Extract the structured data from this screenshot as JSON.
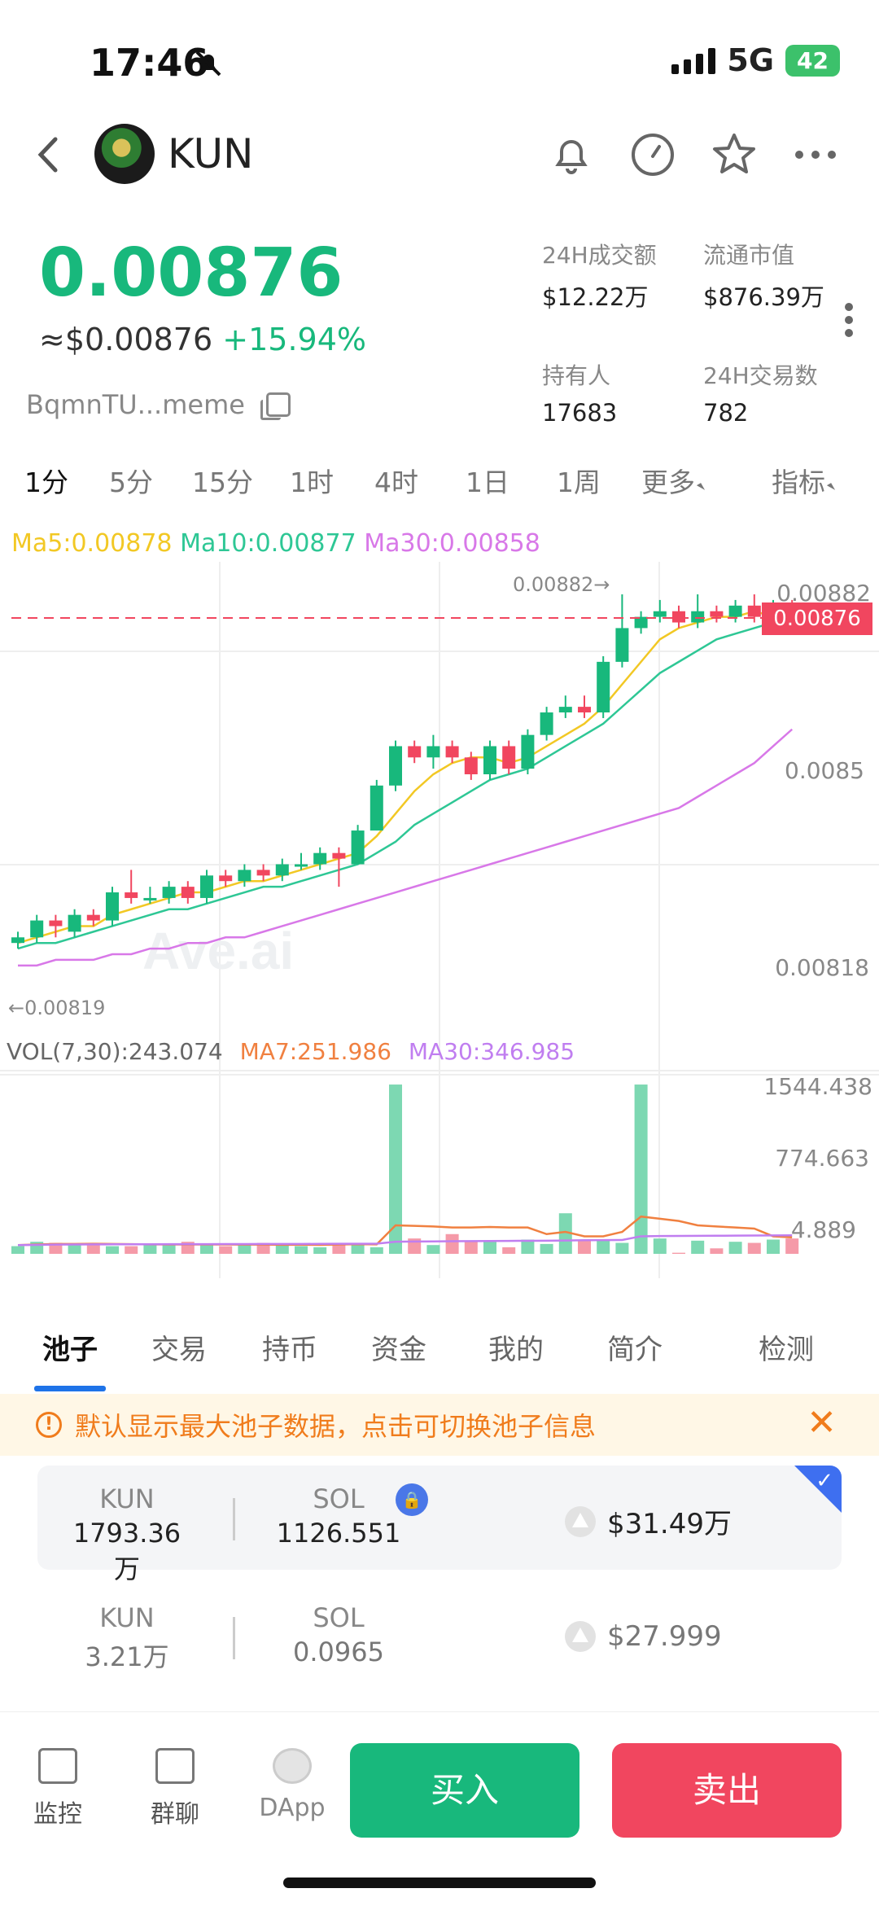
{
  "status": {
    "time": "17:46",
    "network": "5G",
    "battery": "42"
  },
  "header": {
    "token": "KUN"
  },
  "price": {
    "value": "0.00876",
    "usd": "≈$0.00876",
    "change": "+15.94%",
    "address": "BqmnTU...meme"
  },
  "stats": [
    {
      "label": "24H成交额",
      "value": "$12.22万"
    },
    {
      "label": "流通市值",
      "value": "$876.39万"
    },
    {
      "label": "持有人",
      "value": "17683"
    },
    {
      "label": "24H交易数",
      "value": "782"
    }
  ],
  "time_tabs": [
    "1分",
    "5分",
    "15分",
    "1时",
    "4时",
    "1日",
    "1周",
    "更多",
    "指标"
  ],
  "ma_legend": {
    "ma5": "Ma5:0.00878",
    "ma10": "Ma10:0.00877",
    "ma30": "Ma30:0.00858"
  },
  "vol_legend": {
    "vol": "VOL(7,30):243.074",
    "ma7": "MA7:251.986",
    "ma30": "MA30:346.985"
  },
  "colors": {
    "up": "#18b87c",
    "down": "#f1465f",
    "ma5": "#f2c824",
    "ma10": "#2ec795",
    "ma30": "#d878e8",
    "vol_ma7": "#f08040",
    "vol_ma30": "#c07ef0"
  },
  "chart_data": {
    "type": "candlestick",
    "price_axis_labels": [
      "0.00882",
      "0.0085",
      "0.00818"
    ],
    "current_price_label": "0.00876",
    "high_marker": "0.00882→",
    "low_marker": "←0.00819",
    "watermark": "Ave.ai",
    "volume_axis_labels": [
      "1544.438",
      "774.663",
      "4.889"
    ],
    "ylim": [
      0.00815,
      0.00885
    ],
    "candles": [
      {
        "o": 0.0082,
        "c": 0.00821,
        "h": 0.00822,
        "l": 0.00819
      },
      {
        "o": 0.00821,
        "c": 0.00824,
        "h": 0.00825,
        "l": 0.0082
      },
      {
        "o": 0.00824,
        "c": 0.00823,
        "h": 0.00825,
        "l": 0.00821
      },
      {
        "o": 0.00822,
        "c": 0.00825,
        "h": 0.00826,
        "l": 0.00821
      },
      {
        "o": 0.00825,
        "c": 0.00824,
        "h": 0.00826,
        "l": 0.00823
      },
      {
        "o": 0.00824,
        "c": 0.00829,
        "h": 0.0083,
        "l": 0.00823
      },
      {
        "o": 0.00829,
        "c": 0.00828,
        "h": 0.00833,
        "l": 0.00827
      },
      {
        "o": 0.00828,
        "c": 0.00828,
        "h": 0.0083,
        "l": 0.00827
      },
      {
        "o": 0.00828,
        "c": 0.0083,
        "h": 0.00831,
        "l": 0.00827
      },
      {
        "o": 0.0083,
        "c": 0.00828,
        "h": 0.00831,
        "l": 0.00827
      },
      {
        "o": 0.00828,
        "c": 0.00832,
        "h": 0.00833,
        "l": 0.00827
      },
      {
        "o": 0.00832,
        "c": 0.00831,
        "h": 0.00833,
        "l": 0.0083
      },
      {
        "o": 0.00831,
        "c": 0.00833,
        "h": 0.00834,
        "l": 0.0083
      },
      {
        "o": 0.00833,
        "c": 0.00832,
        "h": 0.00834,
        "l": 0.00831
      },
      {
        "o": 0.00832,
        "c": 0.00834,
        "h": 0.00835,
        "l": 0.00831
      },
      {
        "o": 0.00834,
        "c": 0.00834,
        "h": 0.00836,
        "l": 0.00833
      },
      {
        "o": 0.00834,
        "c": 0.00836,
        "h": 0.00837,
        "l": 0.00833
      },
      {
        "o": 0.00836,
        "c": 0.00835,
        "h": 0.00837,
        "l": 0.0083
      },
      {
        "o": 0.00834,
        "c": 0.0084,
        "h": 0.00841,
        "l": 0.00834
      },
      {
        "o": 0.0084,
        "c": 0.00848,
        "h": 0.00849,
        "l": 0.0084
      },
      {
        "o": 0.00848,
        "c": 0.00855,
        "h": 0.00856,
        "l": 0.00847
      },
      {
        "o": 0.00855,
        "c": 0.00853,
        "h": 0.00856,
        "l": 0.00852
      },
      {
        "o": 0.00853,
        "c": 0.00855,
        "h": 0.00857,
        "l": 0.00851
      },
      {
        "o": 0.00855,
        "c": 0.00853,
        "h": 0.00856,
        "l": 0.00852
      },
      {
        "o": 0.00853,
        "c": 0.0085,
        "h": 0.00854,
        "l": 0.00849
      },
      {
        "o": 0.0085,
        "c": 0.00855,
        "h": 0.00856,
        "l": 0.00849
      },
      {
        "o": 0.00855,
        "c": 0.00851,
        "h": 0.00856,
        "l": 0.0085
      },
      {
        "o": 0.00851,
        "c": 0.00857,
        "h": 0.00858,
        "l": 0.0085
      },
      {
        "o": 0.00857,
        "c": 0.00861,
        "h": 0.00862,
        "l": 0.00856
      },
      {
        "o": 0.00861,
        "c": 0.00862,
        "h": 0.00864,
        "l": 0.0086
      },
      {
        "o": 0.00862,
        "c": 0.00861,
        "h": 0.00864,
        "l": 0.0086
      },
      {
        "o": 0.00861,
        "c": 0.0087,
        "h": 0.00871,
        "l": 0.0086
      },
      {
        "o": 0.0087,
        "c": 0.00876,
        "h": 0.00882,
        "l": 0.00869
      },
      {
        "o": 0.00876,
        "c": 0.00878,
        "h": 0.00879,
        "l": 0.00875
      },
      {
        "o": 0.00878,
        "c": 0.00879,
        "h": 0.00881,
        "l": 0.00877
      },
      {
        "o": 0.00879,
        "c": 0.00877,
        "h": 0.0088,
        "l": 0.00876
      },
      {
        "o": 0.00877,
        "c": 0.00879,
        "h": 0.00882,
        "l": 0.00876
      },
      {
        "o": 0.00879,
        "c": 0.00878,
        "h": 0.0088,
        "l": 0.00877
      },
      {
        "o": 0.00878,
        "c": 0.0088,
        "h": 0.00881,
        "l": 0.00877
      },
      {
        "o": 0.0088,
        "c": 0.00878,
        "h": 0.00882,
        "l": 0.00877
      },
      {
        "o": 0.00878,
        "c": 0.0088,
        "h": 0.00881,
        "l": 0.00877
      },
      {
        "o": 0.0088,
        "c": 0.00876,
        "h": 0.00881,
        "l": 0.00875
      }
    ],
    "ma5": [
      0.0082,
      0.00821,
      0.00822,
      0.00823,
      0.00823,
      0.00825,
      0.00826,
      0.00827,
      0.00828,
      0.00829,
      0.00829,
      0.0083,
      0.00831,
      0.00831,
      0.00832,
      0.00833,
      0.00834,
      0.00835,
      0.00836,
      0.00839,
      0.00843,
      0.00847,
      0.0085,
      0.00852,
      0.00853,
      0.00853,
      0.00852,
      0.00853,
      0.00855,
      0.00857,
      0.00859,
      0.00862,
      0.00866,
      0.0087,
      0.00874,
      0.00876,
      0.00877,
      0.00878,
      0.00878,
      0.00879,
      0.00878,
      0.00878
    ],
    "ma10": [
      0.00819,
      0.0082,
      0.0082,
      0.00821,
      0.00822,
      0.00823,
      0.00824,
      0.00825,
      0.00826,
      0.00826,
      0.00827,
      0.00828,
      0.00829,
      0.0083,
      0.0083,
      0.00831,
      0.00832,
      0.00833,
      0.00834,
      0.00836,
      0.00838,
      0.00841,
      0.00843,
      0.00845,
      0.00847,
      0.00849,
      0.0085,
      0.00851,
      0.00853,
      0.00855,
      0.00857,
      0.00859,
      0.00862,
      0.00865,
      0.00868,
      0.0087,
      0.00872,
      0.00874,
      0.00875,
      0.00876,
      0.00877,
      0.00877
    ],
    "ma30": [
      0.00816,
      0.00816,
      0.00817,
      0.00817,
      0.00817,
      0.00818,
      0.00818,
      0.00819,
      0.00819,
      0.0082,
      0.0082,
      0.00821,
      0.00821,
      0.00822,
      0.00823,
      0.00824,
      0.00825,
      0.00826,
      0.00827,
      0.00828,
      0.00829,
      0.0083,
      0.00831,
      0.00832,
      0.00833,
      0.00834,
      0.00835,
      0.00836,
      0.00837,
      0.00838,
      0.00839,
      0.0084,
      0.00841,
      0.00842,
      0.00843,
      0.00844,
      0.00846,
      0.00848,
      0.0085,
      0.00852,
      0.00855,
      0.00858
    ],
    "volume": [
      70,
      110,
      100,
      90,
      100,
      70,
      70,
      90,
      90,
      110,
      80,
      70,
      80,
      100,
      80,
      70,
      60,
      100,
      100,
      60,
      1544,
      140,
      80,
      180,
      110,
      110,
      60,
      130,
      90,
      370,
      120,
      120,
      100,
      1544,
      140,
      10,
      120,
      50,
      110,
      100,
      130,
      140
    ],
    "vol_ma7": [
      80,
      85,
      90,
      90,
      92,
      90,
      88,
      86,
      85,
      85,
      85,
      85,
      84,
      84,
      83,
      83,
      82,
      85,
      88,
      86,
      260,
      255,
      250,
      240,
      240,
      245,
      240,
      240,
      180,
      200,
      160,
      160,
      200,
      340,
      320,
      300,
      260,
      250,
      240,
      230,
      160,
      150
    ],
    "vol_ma30": [
      80,
      82,
      84,
      85,
      86,
      87,
      87,
      87,
      88,
      88,
      88,
      89,
      89,
      90,
      90,
      90,
      91,
      92,
      92,
      93,
      110,
      112,
      113,
      115,
      116,
      117,
      118,
      119,
      120,
      122,
      124,
      125,
      126,
      160,
      162,
      163,
      164,
      165,
      166,
      167,
      168,
      169
    ]
  },
  "pool_tabs": [
    "池子",
    "交易",
    "持币",
    "资金",
    "我的",
    "简介",
    "检测"
  ],
  "banner": {
    "text": "默认显示最大池子数据，点击可切换池子信息"
  },
  "pools": [
    {
      "token_a": "KUN",
      "amount_a": "1793.36万",
      "token_b": "SOL",
      "amount_b": "1126.551",
      "liquidity": "$31.49万"
    },
    {
      "token_a": "KUN",
      "amount_a": "3.21万",
      "token_b": "SOL",
      "amount_b": "0.0965",
      "liquidity": "$27.999"
    }
  ],
  "bottom_nav": {
    "monitor": "监控",
    "chat": "群聊",
    "dapp": "DApp",
    "buy": "买入",
    "sell": "卖出"
  }
}
